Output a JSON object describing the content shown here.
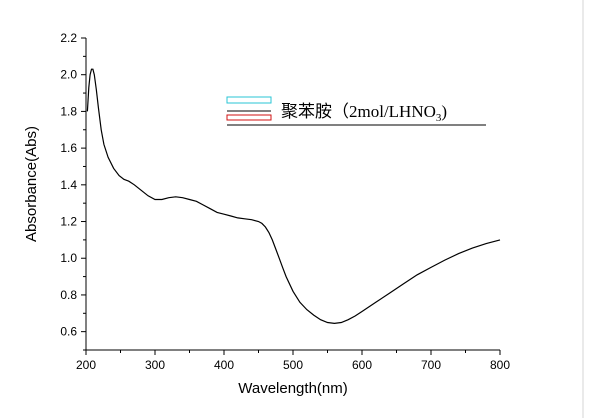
{
  "chart_data": {
    "type": "line",
    "title": "",
    "xlabel": "Wavelength(nm)",
    "ylabel": "Absorbance(Abs)",
    "xlim": [
      200,
      800
    ],
    "ylim": [
      0.5,
      2.2
    ],
    "x_ticks": [
      "200",
      "300",
      "400",
      "500",
      "600",
      "700",
      "800"
    ],
    "y_ticks": [
      "0.6",
      "0.8",
      "1.0",
      "1.2",
      "1.4",
      "1.6",
      "1.8",
      "2.0",
      "2.2"
    ],
    "legend": {
      "placement": "top-right",
      "entries": [
        {
          "label_main": "聚苯胺（2mol/LHNO",
          "label_sub": "3",
          "label_end": ")"
        }
      ]
    },
    "series": [
      {
        "name": "聚苯胺（2mol/LHNO3)",
        "color": "#000000",
        "x": [
          202,
          204,
          206,
          208,
          210,
          212,
          215,
          218,
          222,
          226,
          232,
          240,
          248,
          255,
          262,
          270,
          280,
          290,
          300,
          310,
          320,
          330,
          340,
          350,
          360,
          370,
          380,
          390,
          400,
          410,
          420,
          430,
          440,
          450,
          455,
          460,
          465,
          470,
          475,
          480,
          485,
          490,
          500,
          510,
          520,
          530,
          540,
          550,
          560,
          570,
          580,
          590,
          600,
          620,
          640,
          660,
          680,
          700,
          720,
          740,
          760,
          780,
          800
        ],
        "y": [
          1.8,
          1.93,
          2.0,
          2.03,
          2.03,
          2.0,
          1.92,
          1.82,
          1.7,
          1.62,
          1.55,
          1.49,
          1.45,
          1.43,
          1.42,
          1.4,
          1.37,
          1.34,
          1.32,
          1.32,
          1.33,
          1.335,
          1.33,
          1.32,
          1.31,
          1.29,
          1.27,
          1.25,
          1.24,
          1.23,
          1.22,
          1.215,
          1.21,
          1.2,
          1.19,
          1.17,
          1.14,
          1.1,
          1.05,
          1.0,
          0.95,
          0.9,
          0.82,
          0.76,
          0.72,
          0.69,
          0.665,
          0.65,
          0.645,
          0.65,
          0.665,
          0.685,
          0.71,
          0.76,
          0.81,
          0.86,
          0.91,
          0.95,
          0.99,
          1.025,
          1.055,
          1.08,
          1.1
        ]
      }
    ]
  }
}
